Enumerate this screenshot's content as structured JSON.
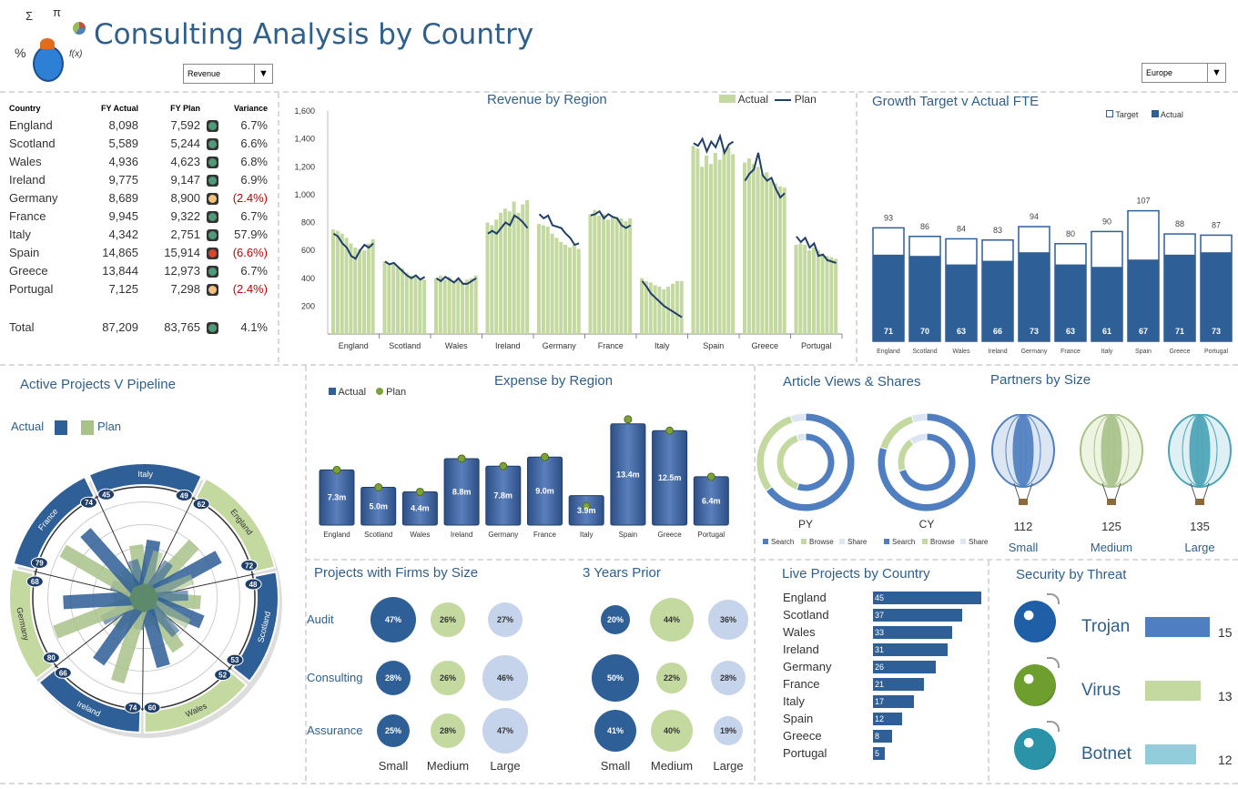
{
  "header": {
    "title": "Consulting Analysis by Country",
    "metric_select": "Revenue",
    "region_select": "Europe",
    "logo_symbols": [
      "Σ",
      "π",
      "%",
      "f(x)"
    ]
  },
  "colors": {
    "blue": "#2f5f97",
    "green": "#c4d9a0",
    "lightblue": "#b7c9e2",
    "teal": "#92cddc",
    "dark": "#1f3f6a"
  },
  "kpi": {
    "headers": [
      "Country",
      "FY Actual",
      "FY Plan",
      "Variance"
    ],
    "rows": [
      {
        "country": "England",
        "actual": "8,098",
        "plan": "7,592",
        "status": "green",
        "variance": "6.7%"
      },
      {
        "country": "Scotland",
        "actual": "5,589",
        "plan": "5,244",
        "status": "green",
        "variance": "6.6%"
      },
      {
        "country": "Wales",
        "actual": "4,936",
        "plan": "4,623",
        "status": "green",
        "variance": "6.8%"
      },
      {
        "country": "Ireland",
        "actual": "9,775",
        "plan": "9,147",
        "status": "green",
        "variance": "6.9%"
      },
      {
        "country": "Germany",
        "actual": "8,689",
        "plan": "8,900",
        "status": "amber",
        "variance": "(2.4%)"
      },
      {
        "country": "France",
        "actual": "9,945",
        "plan": "9,322",
        "status": "green",
        "variance": "6.7%"
      },
      {
        "country": "Italy",
        "actual": "4,342",
        "plan": "2,751",
        "status": "green",
        "variance": "57.9%"
      },
      {
        "country": "Spain",
        "actual": "14,865",
        "plan": "15,914",
        "status": "red",
        "variance": "(6.6%)"
      },
      {
        "country": "Greece",
        "actual": "13,844",
        "plan": "12,973",
        "status": "green",
        "variance": "6.7%"
      },
      {
        "country": "Portugal",
        "actual": "7,125",
        "plan": "7,298",
        "status": "amber",
        "variance": "(2.4%)"
      }
    ],
    "total": {
      "label": "Total",
      "actual": "87,209",
      "plan": "83,765",
      "status": "green",
      "variance": "4.1%"
    }
  },
  "chart_data": [
    {
      "id": "revenue",
      "type": "bar",
      "title": "Revenue by Region",
      "legend": [
        "Actual",
        "Plan"
      ],
      "yticks": [
        200,
        400,
        600,
        800,
        "1,000",
        "1,200",
        "1,400",
        "1,600"
      ],
      "ylim": [
        0,
        1600
      ],
      "categories": [
        "England",
        "Scotland",
        "Wales",
        "Ireland",
        "Germany",
        "France",
        "Italy",
        "Spain",
        "Greece",
        "Portugal"
      ],
      "series": [
        {
          "name": "Actual",
          "values": [
            [
              750,
              740,
              720,
              690,
              650,
              620,
              610,
              600,
              650,
              680
            ],
            [
              520,
              510,
              500,
              480,
              470,
              440,
              420,
              410,
              400,
              390
            ],
            [
              400,
              420,
              390,
              410,
              380,
              400,
              370,
              390,
              400,
              420
            ],
            [
              800,
              780,
              820,
              870,
              900,
              880,
              950,
              870,
              930,
              960
            ],
            [
              790,
              780,
              770,
              720,
              690,
              660,
              640,
              620,
              640,
              610
            ],
            [
              860,
              890,
              850,
              860,
              820,
              840,
              840,
              830,
              810,
              830
            ],
            [
              400,
              380,
              370,
              350,
              340,
              320,
              340,
              360,
              380,
              380
            ],
            [
              1350,
              1330,
              1200,
              1280,
              1220,
              1300,
              1250,
              1320,
              1340,
              1290
            ],
            [
              1230,
              1260,
              1220,
              1200,
              1150,
              1160,
              1100,
              1080,
              1060,
              1050
            ],
            [
              640,
              650,
              640,
              600,
              620,
              600,
              570,
              560,
              550,
              540
            ]
          ]
        },
        {
          "name": "Plan",
          "values": [
            [
              720,
              700,
              650,
              620,
              560,
              540,
              600,
              640,
              620,
              650
            ],
            [
              520,
              500,
              510,
              480,
              450,
              420,
              400,
              420,
              390,
              410
            ],
            [
              400,
              380,
              410,
              390,
              370,
              400,
              360,
              360,
              380,
              400
            ],
            [
              720,
              740,
              720,
              760,
              800,
              780,
              850,
              830,
              800,
              760
            ],
            [
              860,
              830,
              850,
              780,
              770,
              760,
              720,
              690,
              640,
              650
            ],
            [
              850,
              860,
              880,
              830,
              860,
              840,
              830,
              780,
              760,
              780
            ],
            [
              380,
              340,
              290,
              260,
              230,
              200,
              180,
              160,
              140,
              120
            ],
            [
              1370,
              1350,
              1400,
              1310,
              1380,
              1340,
              1420,
              1300,
              1360,
              1380
            ],
            [
              1100,
              1150,
              1180,
              1300,
              1140,
              1100,
              1120,
              1040,
              980,
              1010
            ],
            [
              700,
              660,
              690,
              620,
              650,
              560,
              570,
              530,
              520,
              510
            ]
          ]
        }
      ]
    },
    {
      "id": "fte",
      "type": "bar",
      "title": "Growth Target v Actual FTE",
      "legend": [
        "Target",
        "Actual"
      ],
      "categories": [
        "England",
        "Scotland",
        "Wales",
        "Ireland",
        "Germany",
        "France",
        "Italy",
        "Spain",
        "Greece",
        "Portugal"
      ],
      "target": [
        93,
        86,
        84,
        83,
        94,
        80,
        90,
        107,
        88,
        87
      ],
      "actual": [
        71,
        70,
        63,
        66,
        73,
        63,
        61,
        67,
        71,
        73
      ]
    },
    {
      "id": "expense",
      "type": "bar",
      "title": "Expense by Region",
      "legend": [
        "Actual",
        "Plan"
      ],
      "categories": [
        "England",
        "Scotland",
        "Wales",
        "Ireland",
        "Germany",
        "France",
        "Italy",
        "Spain",
        "Greece",
        "Portugal"
      ],
      "labels": [
        "7.3m",
        "5.0m",
        "4.4m",
        "8.8m",
        "7.8m",
        "9.0m",
        "3.9m",
        "13.4m",
        "12.5m",
        "6.4m"
      ],
      "actual": [
        7.3,
        5.0,
        4.4,
        8.8,
        7.8,
        9.0,
        3.9,
        13.4,
        12.5,
        6.4
      ],
      "plan": [
        7.3,
        5.0,
        4.4,
        8.8,
        7.8,
        9.0,
        2.5,
        14.0,
        12.5,
        6.4
      ]
    },
    {
      "id": "radar",
      "type": "bar",
      "title": "Active Projects V Pipeline",
      "legend": [
        "Actual",
        "Plan"
      ],
      "categories": [
        "England",
        "Scotland",
        "Wales",
        "Ireland",
        "Germany",
        "France",
        "Italy"
      ],
      "actual": [
        72,
        53,
        60,
        66,
        68,
        74,
        49
      ],
      "plan": [
        62,
        48,
        52,
        74,
        80,
        79,
        45
      ]
    },
    {
      "id": "views",
      "type": "pie",
      "title": "Article Views & Shares",
      "categories": [
        "Search",
        "Browse",
        "Share"
      ],
      "rings": [
        {
          "name": "PY",
          "outer": [
            65,
            30,
            5
          ],
          "inner": [
            55,
            40,
            5
          ]
        },
        {
          "name": "CY",
          "outer": [
            80,
            15,
            5
          ],
          "inner": [
            70,
            20,
            10
          ]
        }
      ]
    },
    {
      "id": "live",
      "type": "bar",
      "title": "Live Projects by Country",
      "categories": [
        "England",
        "Scotland",
        "Wales",
        "Ireland",
        "Germany",
        "France",
        "Italy",
        "Spain",
        "Greece",
        "Portugal"
      ],
      "values": [
        45,
        37,
        33,
        31,
        26,
        21,
        17,
        12,
        8,
        5
      ]
    }
  ],
  "partners": {
    "title": "Partners by Size",
    "items": [
      {
        "size": "Small",
        "value": "112"
      },
      {
        "size": "Medium",
        "value": "125"
      },
      {
        "size": "Large",
        "value": "135"
      }
    ]
  },
  "firms": {
    "title": "Projects with Firms by Size",
    "prior_title": "3 Years Prior",
    "rows": [
      "Audit",
      "Consulting",
      "Assurance"
    ],
    "sizes": [
      "Small",
      "Medium",
      "Large"
    ],
    "current": [
      [
        "47%",
        "26%",
        "27%"
      ],
      [
        "28%",
        "26%",
        "46%"
      ],
      [
        "25%",
        "28%",
        "47%"
      ]
    ],
    "prior": [
      [
        "20%",
        "44%",
        "36%"
      ],
      [
        "50%",
        "22%",
        "28%"
      ],
      [
        "41%",
        "40%",
        "19%"
      ]
    ]
  },
  "security": {
    "title": "Security by Threat",
    "items": [
      {
        "name": "Trojan",
        "value": "15"
      },
      {
        "name": "Virus",
        "value": "13"
      },
      {
        "name": "Botnet",
        "value": "12"
      }
    ]
  }
}
